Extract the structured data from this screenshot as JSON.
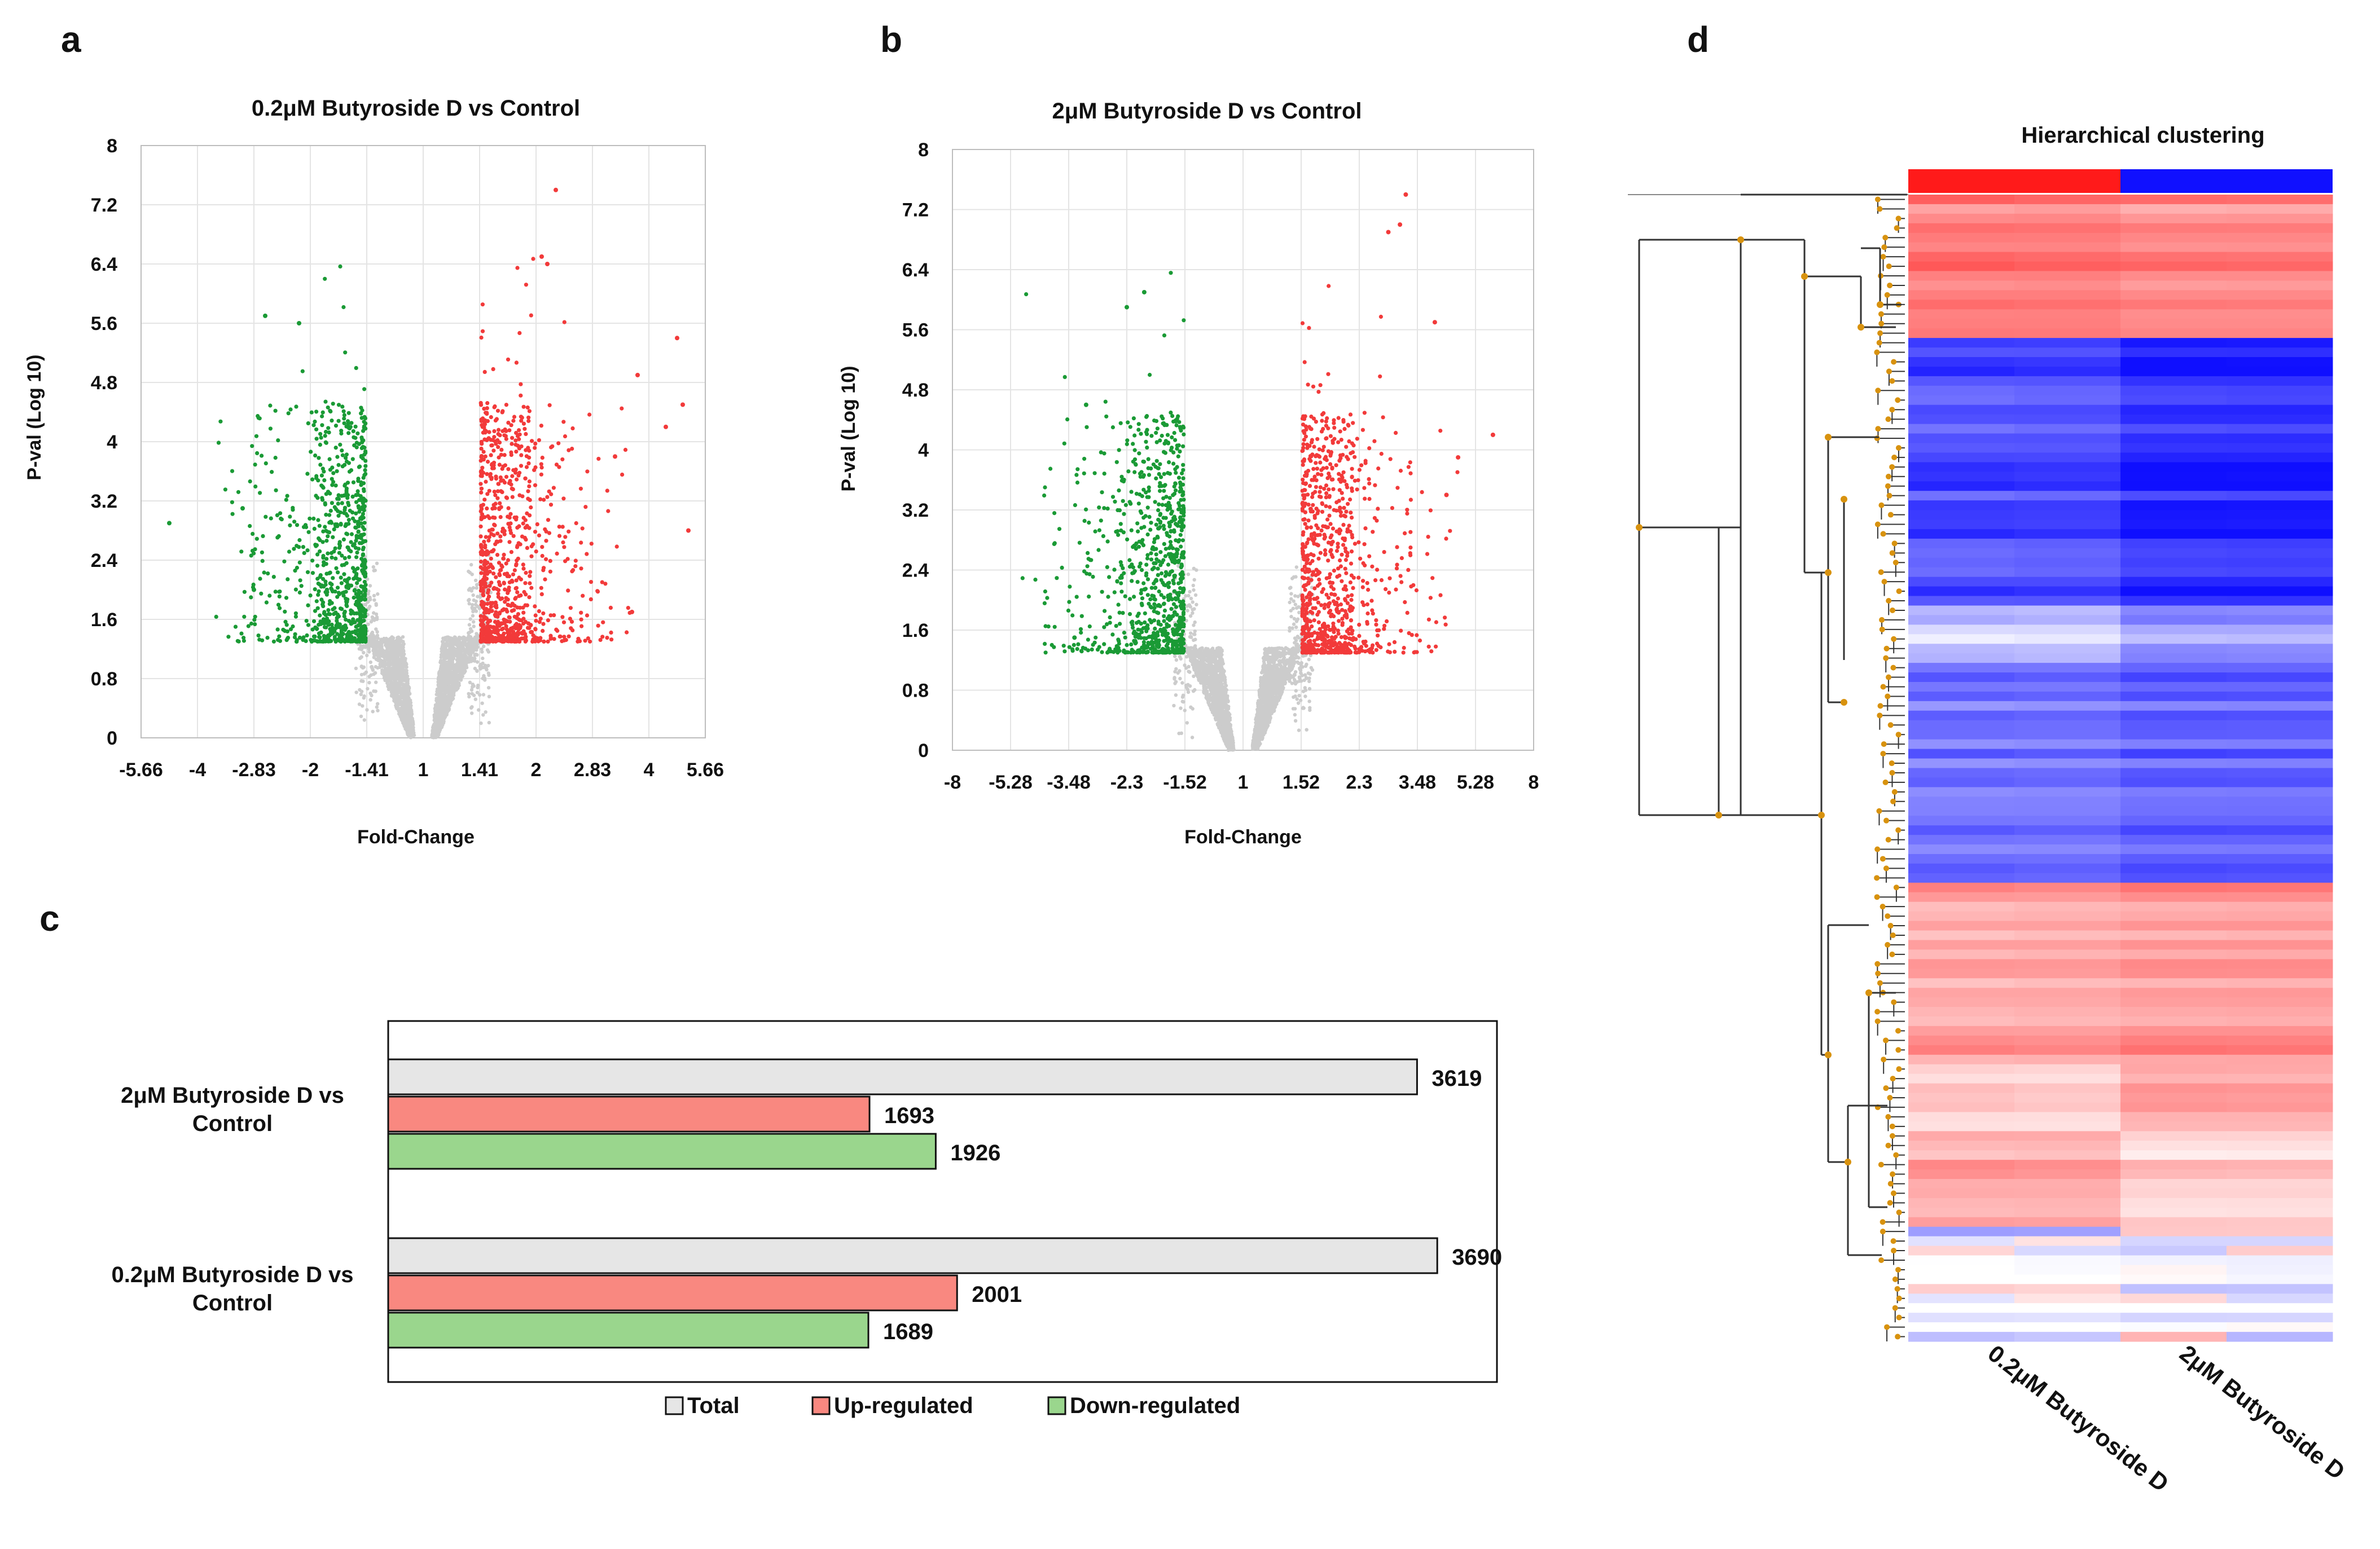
{
  "panels": {
    "a": "a",
    "b": "b",
    "c": "c",
    "d": "d"
  },
  "colors": {
    "up": "#f23a3a",
    "down": "#1a9a35",
    "ns": "#cccccc",
    "bar_total": "#e6e6e6",
    "bar_up": "#f98880",
    "bar_down": "#9ad68d",
    "heat_red": "#ff1a1a",
    "heat_blue": "#1010ff",
    "dendro": "#333333",
    "node": "#d8920e"
  },
  "chart_data": [
    {
      "id": "a",
      "type": "scatter",
      "title": "0.2μM  Butyroside D vs Control",
      "xlabel": "Fold-Change",
      "ylabel": "P-val (Log 10)",
      "xticks": [
        "-5.66",
        "-4",
        "-2.83",
        "-2",
        "-1.41",
        "1",
        "1.41",
        "2",
        "2.83",
        "4",
        "5.66"
      ],
      "yticks": [
        "0",
        "0.8",
        "1.6",
        "2.4",
        "3.2",
        "4",
        "4.8",
        "5.6",
        "6.4",
        "7.2",
        "8"
      ],
      "xlim": [
        -5.66,
        5.66
      ],
      "ylim": [
        0,
        8
      ],
      "thresholds": {
        "fold_change": 1.41,
        "p_log10": 1.3
      },
      "n_down": 1689,
      "n_up": 2001
    },
    {
      "id": "b",
      "type": "scatter",
      "title": "2μM  Butyroside D vs Control",
      "xlabel": "Fold-Change",
      "ylabel": "P-val (Log 10)",
      "xticks": [
        "-8",
        "-5.28",
        "-3.48",
        "-2.3",
        "-1.52",
        "1",
        "1.52",
        "2.3",
        "3.48",
        "5.28",
        "8"
      ],
      "yticks": [
        "0",
        "0.8",
        "1.6",
        "2.4",
        "3.2",
        "4",
        "4.8",
        "5.6",
        "6.4",
        "7.2",
        "8"
      ],
      "xlim": [
        -8,
        8
      ],
      "ylim": [
        0,
        8
      ],
      "thresholds": {
        "fold_change": 1.52,
        "p_log10": 1.3
      },
      "n_down": 1926,
      "n_up": 1693
    },
    {
      "id": "c",
      "type": "bar",
      "orientation": "horizontal",
      "categories": [
        "2μM Butyroside D vs Control",
        "0.2μM Butyroside D vs Control"
      ],
      "category_lines": [
        [
          "2μM Butyroside D vs",
          "Control"
        ],
        [
          "0.2μM Butyroside D vs",
          "Control"
        ]
      ],
      "series": [
        {
          "name": "Total",
          "values": [
            3619,
            3690
          ]
        },
        {
          "name": "Up-regulated",
          "values": [
            1693,
            2001
          ]
        },
        {
          "name": "Down-regulated",
          "values": [
            1926,
            1689
          ]
        }
      ],
      "xlim": [
        0,
        3900
      ],
      "legend": "bottom"
    },
    {
      "id": "d",
      "type": "heatmap",
      "title": "Hierarchical clustering",
      "columns": [
        "0.2μM  Butyroside D",
        "2μM  Butyroside D"
      ],
      "n_rows": 120
    }
  ]
}
